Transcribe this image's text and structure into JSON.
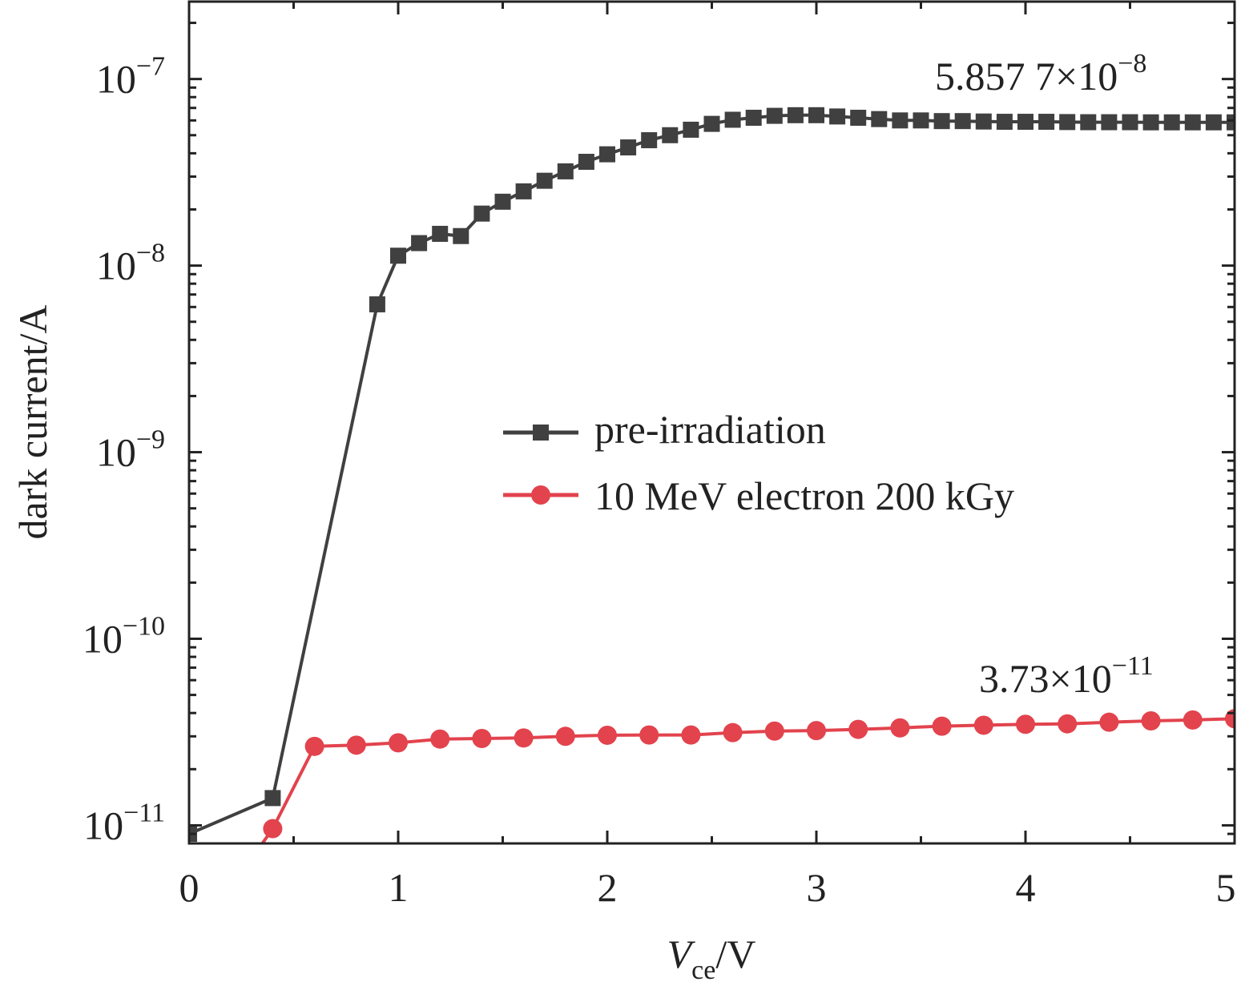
{
  "chart_data": {
    "type": "line",
    "title": "",
    "xlabel": "V",
    "xlabel_sub": "ce",
    "xlabel_suffix": "/V",
    "ylabel": "dark current/A",
    "xlim": [
      0,
      5
    ],
    "ylim": [
      8e-12,
      2.6e-07
    ],
    "yscale": "log",
    "grid": false,
    "legend_position": "center-right",
    "x_ticks": [
      {
        "value": 0,
        "label": "0"
      },
      {
        "value": 1,
        "label": "1"
      },
      {
        "value": 2,
        "label": "2"
      },
      {
        "value": 3,
        "label": "3"
      },
      {
        "value": 4,
        "label": "4"
      },
      {
        "value": 5,
        "label": "5"
      }
    ],
    "y_ticks": [
      {
        "value": 1e-11,
        "base": "10",
        "exp": "−11"
      },
      {
        "value": 1e-10,
        "base": "10",
        "exp": "−10"
      },
      {
        "value": 1e-09,
        "base": "10",
        "exp": "−9"
      },
      {
        "value": 1e-08,
        "base": "10",
        "exp": "−8"
      },
      {
        "value": 1e-07,
        "base": "10",
        "exp": "−7"
      }
    ],
    "series": [
      {
        "name": "pre-irradiation",
        "color": "#404040",
        "marker": "square",
        "x": [
          0,
          0.4,
          0.9,
          1.0,
          1.1,
          1.2,
          1.3,
          1.4,
          1.5,
          1.6,
          1.7,
          1.8,
          1.9,
          2.0,
          2.1,
          2.2,
          2.3,
          2.4,
          2.5,
          2.6,
          2.7,
          2.8,
          2.9,
          3.0,
          3.1,
          3.2,
          3.3,
          3.4,
          3.5,
          3.6,
          3.7,
          3.8,
          3.9,
          4.0,
          4.1,
          4.2,
          4.3,
          4.4,
          4.5,
          4.6,
          4.7,
          4.8,
          4.9,
          5.0
        ],
        "y": [
          9e-12,
          1.4e-11,
          6.2e-09,
          1.13e-08,
          1.32e-08,
          1.48e-08,
          1.44e-08,
          1.9e-08,
          2.2e-08,
          2.5e-08,
          2.85e-08,
          3.2e-08,
          3.6e-08,
          3.95e-08,
          4.3e-08,
          4.7e-08,
          5e-08,
          5.35e-08,
          5.75e-08,
          6.05e-08,
          6.2e-08,
          6.35e-08,
          6.4e-08,
          6.4e-08,
          6.3e-08,
          6.2e-08,
          6.1e-08,
          6e-08,
          6e-08,
          5.95e-08,
          5.95e-08,
          5.92e-08,
          5.9e-08,
          5.9e-08,
          5.9e-08,
          5.88e-08,
          5.87e-08,
          5.87e-08,
          5.87e-08,
          5.86e-08,
          5.86e-08,
          5.86e-08,
          5.86e-08,
          5.86e-08
        ]
      },
      {
        "name": "10 MeV electron 200 kGy",
        "color": "#e2434d",
        "marker": "circle",
        "x": [
          0.35,
          0.4,
          0.6,
          0.8,
          1.0,
          1.2,
          1.4,
          1.6,
          1.8,
          2.0,
          2.2,
          2.4,
          2.6,
          2.8,
          3.0,
          3.2,
          3.4,
          3.6,
          3.8,
          4.0,
          4.2,
          4.4,
          4.6,
          4.8,
          5.0
        ],
        "y": [
          8e-12,
          9.6e-12,
          2.65e-11,
          2.69e-11,
          2.77e-11,
          2.9e-11,
          2.92e-11,
          2.94e-11,
          3e-11,
          3.04e-11,
          3.05e-11,
          3.05e-11,
          3.14e-11,
          3.2e-11,
          3.22e-11,
          3.27e-11,
          3.33e-11,
          3.4e-11,
          3.44e-11,
          3.48e-11,
          3.5e-11,
          3.57e-11,
          3.63e-11,
          3.67e-11,
          3.73e-11
        ],
        "marker_start_index": 1
      }
    ],
    "annotations": [
      {
        "text_base": "5.857 7×10",
        "text_exp": "−8"
      },
      {
        "text_base": "3.73×10",
        "text_exp": "−11"
      }
    ]
  }
}
